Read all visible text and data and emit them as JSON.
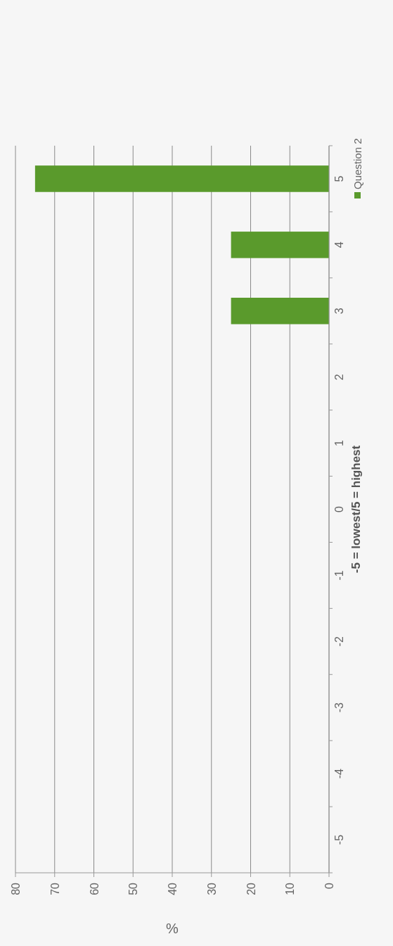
{
  "chart_data": {
    "type": "bar",
    "orientation": "horizontal",
    "xlabel": "%",
    "ylabel": "-5 = lowest/5 = highest",
    "categories": [
      "5",
      "4",
      "3",
      "2",
      "1",
      "0",
      "-1",
      "-2",
      "-3",
      "-4",
      "-5"
    ],
    "series": [
      {
        "name": "Question 2",
        "color": "#5a9a2c",
        "values": [
          75,
          25,
          25,
          0,
          0,
          0,
          0,
          0,
          0,
          0,
          0
        ]
      }
    ],
    "xlim": [
      80,
      0
    ],
    "xticks": [
      80,
      70,
      60,
      50,
      40,
      30,
      20,
      10,
      0
    ],
    "grid": "x",
    "legend": "top right"
  }
}
